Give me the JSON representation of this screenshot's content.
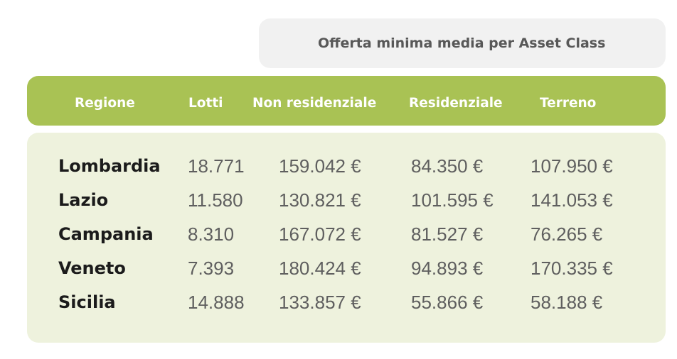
{
  "chart_data": {
    "type": "table",
    "title": "Offerta minima media per Asset Class",
    "columns": [
      "Regione",
      "Lotti",
      "Non residenziale",
      "Residenziale",
      "Terreno"
    ],
    "rows": [
      {
        "region": "Lombardia",
        "lotti": "18.771",
        "non_residenziale": "159.042 €",
        "residenziale": "84.350 €",
        "terreno": "107.950 €"
      },
      {
        "region": "Lazio",
        "lotti": "11.580",
        "non_residenziale": "130.821 €",
        "residenziale": "101.595 €",
        "terreno": "141.053 €"
      },
      {
        "region": "Campania",
        "lotti": "8.310",
        "non_residenziale": "167.072 €",
        "residenziale": "81.527 €",
        "terreno": "76.265 €"
      },
      {
        "region": "Veneto",
        "lotti": "7.393",
        "non_residenziale": "180.424 €",
        "residenziale": "94.893 €",
        "terreno": "170.335 €"
      },
      {
        "region": "Sicilia",
        "lotti": "14.888",
        "non_residenziale": "133.857 €",
        "residenziale": "55.866 €",
        "terreno": "58.188 €"
      }
    ]
  },
  "colors": {
    "header_green": "#a9c254",
    "body_green": "#eef2dd",
    "caption_gray": "#f1f1f1"
  }
}
